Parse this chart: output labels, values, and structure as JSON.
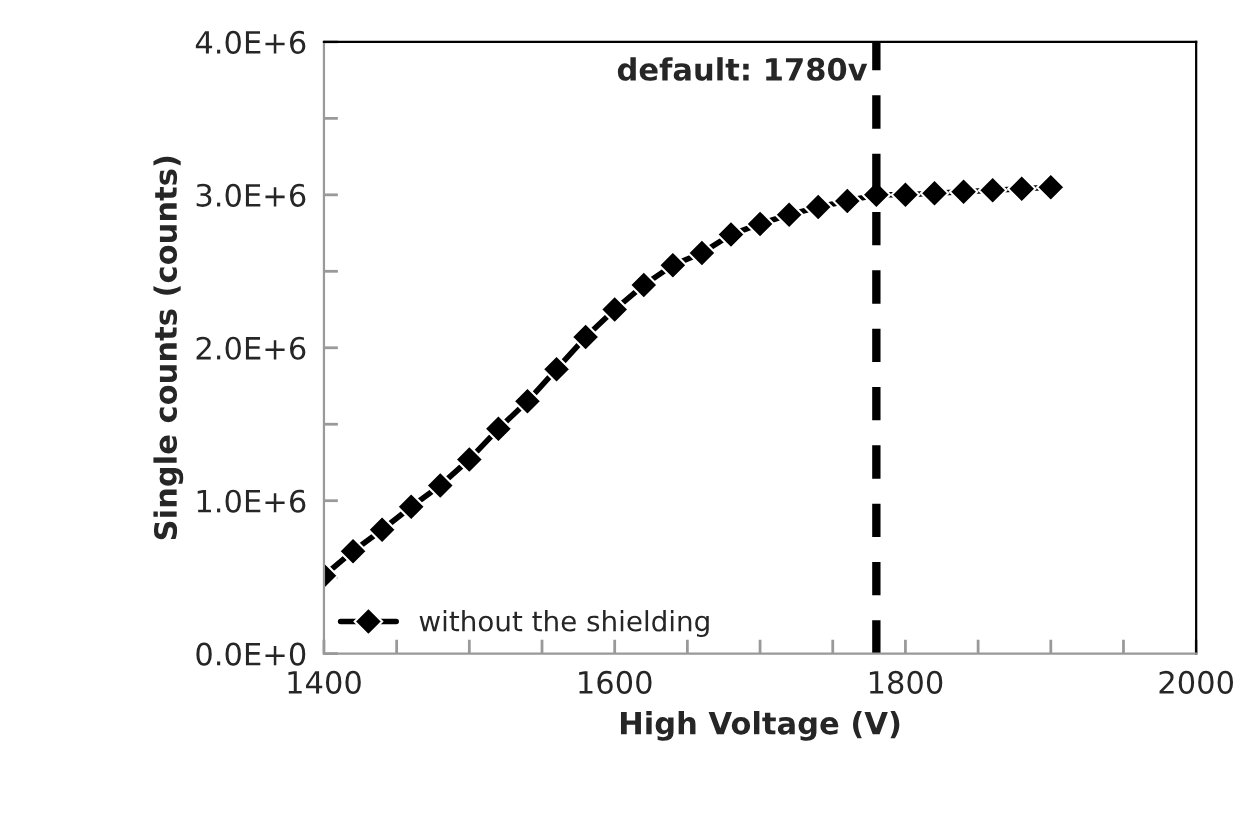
{
  "chart_data": {
    "type": "line",
    "xlabel": "High Voltage (V)",
    "ylabel": "Single counts (counts)",
    "x": [
      1400,
      1420,
      1440,
      1460,
      1480,
      1500,
      1520,
      1540,
      1560,
      1580,
      1600,
      1620,
      1640,
      1660,
      1680,
      1700,
      1720,
      1740,
      1760,
      1780,
      1800,
      1820,
      1840,
      1860,
      1880,
      1900
    ],
    "series": [
      {
        "name": "without the shielding",
        "color": "#000000",
        "values": [
          510000,
          670000,
          810000,
          960000,
          1100000,
          1270000,
          1470000,
          1650000,
          1860000,
          2070000,
          2250000,
          2410000,
          2540000,
          2620000,
          2740000,
          2810000,
          2870000,
          2920000,
          2960000,
          3000000,
          3000000,
          3010000,
          3020000,
          3030000,
          3040000,
          3050000
        ]
      }
    ],
    "xlim": [
      1400,
      2000
    ],
    "xticks": [
      1400,
      {
        "value": 1450,
        "label": null
      },
      {
        "value": 1500,
        "label": null
      },
      {
        "value": 1550,
        "label": null
      },
      1600,
      {
        "value": 1650,
        "label": null
      },
      {
        "value": 1700,
        "label": null
      },
      {
        "value": 1750,
        "label": null
      },
      1800,
      {
        "value": 1850,
        "label": null
      },
      {
        "value": 1900,
        "label": null
      },
      {
        "value": 1950,
        "label": null
      },
      2000
    ],
    "ylim": [
      0,
      4000000
    ],
    "yticks": [
      {
        "value": 0,
        "label": "0.0E+0"
      },
      {
        "value": 500000,
        "label": null
      },
      {
        "value": 1000000,
        "label": "1.0E+6"
      },
      {
        "value": 1500000,
        "label": null
      },
      {
        "value": 2000000,
        "label": "2.0E+6"
      },
      {
        "value": 2500000,
        "label": null
      },
      {
        "value": 3000000,
        "label": "3.0E+6"
      },
      {
        "value": 3500000,
        "label": null
      },
      {
        "value": 4000000,
        "label": "4.0E+6"
      }
    ],
    "ref_lines": [
      {
        "axis": "x",
        "value": 1780,
        "label": "default: 1780v",
        "color": "#000000",
        "line_style": "dashed"
      }
    ],
    "legend": "bottom left",
    "grid": false,
    "marker": "diamond",
    "line_style": "solid"
  }
}
